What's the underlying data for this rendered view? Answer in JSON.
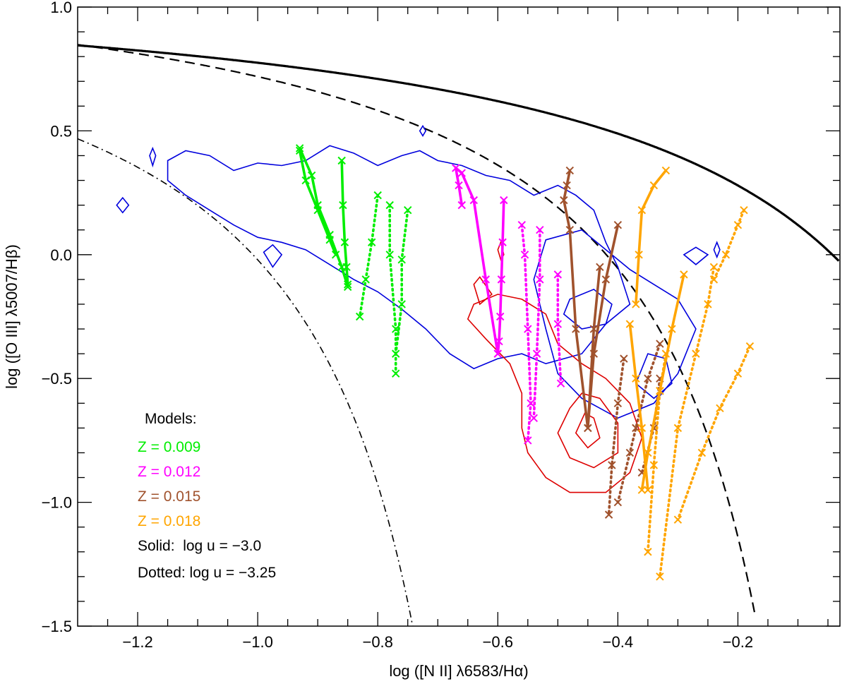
{
  "chart_data": {
    "type": "line",
    "xlabel": "log ([N II] λ6583/Hα)",
    "ylabel": "log ([O III] λ5007/Hβ)",
    "xlim": [
      -1.3,
      -0.03
    ],
    "ylim": [
      -1.5,
      1.0
    ],
    "xticks": [
      -1.2,
      -1.0,
      -0.8,
      -0.6,
      -0.4,
      -0.2
    ],
    "xtick_labels": [
      "−1.2",
      "−1.0",
      "−0.8",
      "−0.6",
      "−0.4",
      "−0.2"
    ],
    "yticks": [
      -1.5,
      -1.0,
      -0.5,
      0.0,
      0.5,
      1.0
    ],
    "ytick_labels": [
      "−1.5",
      "−1.0",
      "−0.5",
      "0.0",
      "0.5",
      "1.0"
    ],
    "grid": false,
    "demarcation_curves": [
      {
        "name": "solid-curve",
        "style": "solid",
        "formula": "0.61/(x-0.47)+1.19"
      },
      {
        "name": "dashed-curve",
        "style": "dashed",
        "formula": "0.61/(x-0.05)+1.3"
      },
      {
        "name": "dashdot-curve",
        "style": "dashdot",
        "formula": "-30.787+1.1358x+0.27297x^2 tanh(5.7409x)"
      }
    ],
    "contours": [
      {
        "name": "contour-blue-main",
        "color": "#0000dd",
        "points": [
          [
            -1.15,
            0.38
          ],
          [
            -1.12,
            0.42
          ],
          [
            -1.08,
            0.4
          ],
          [
            -1.04,
            0.34
          ],
          [
            -1.0,
            0.37
          ],
          [
            -0.96,
            0.36
          ],
          [
            -0.92,
            0.38
          ],
          [
            -0.88,
            0.44
          ],
          [
            -0.84,
            0.41
          ],
          [
            -0.8,
            0.36
          ],
          [
            -0.76,
            0.4
          ],
          [
            -0.73,
            0.42
          ],
          [
            -0.7,
            0.38
          ],
          [
            -0.66,
            0.36
          ],
          [
            -0.62,
            0.32
          ],
          [
            -0.58,
            0.3
          ],
          [
            -0.54,
            0.24
          ],
          [
            -0.5,
            0.28
          ],
          [
            -0.47,
            0.24
          ],
          [
            -0.44,
            0.18
          ],
          [
            -0.42,
            0.05
          ],
          [
            -0.4,
            -0.05
          ],
          [
            -0.38,
            -0.2
          ],
          [
            -0.42,
            -0.28
          ],
          [
            -0.46,
            -0.4
          ],
          [
            -0.52,
            -0.44
          ],
          [
            -0.56,
            -0.4
          ],
          [
            -0.6,
            -0.42
          ],
          [
            -0.64,
            -0.46
          ],
          [
            -0.68,
            -0.4
          ],
          [
            -0.72,
            -0.3
          ],
          [
            -0.76,
            -0.22
          ],
          [
            -0.8,
            -0.15
          ],
          [
            -0.84,
            -0.1
          ],
          [
            -0.88,
            -0.04
          ],
          [
            -0.92,
            0.02
          ],
          [
            -0.96,
            0.05
          ],
          [
            -1.0,
            0.07
          ],
          [
            -1.04,
            0.12
          ],
          [
            -1.08,
            0.18
          ],
          [
            -1.12,
            0.24
          ],
          [
            -1.15,
            0.3
          ],
          [
            -1.15,
            0.38
          ]
        ]
      },
      {
        "name": "contour-blue-right",
        "color": "#0000dd",
        "points": [
          [
            -0.52,
            0.06
          ],
          [
            -0.46,
            0.1
          ],
          [
            -0.42,
            0.02
          ],
          [
            -0.38,
            -0.06
          ],
          [
            -0.34,
            -0.12
          ],
          [
            -0.3,
            -0.18
          ],
          [
            -0.27,
            -0.3
          ],
          [
            -0.3,
            -0.48
          ],
          [
            -0.34,
            -0.6
          ],
          [
            -0.4,
            -0.66
          ],
          [
            -0.46,
            -0.58
          ],
          [
            -0.5,
            -0.48
          ],
          [
            -0.52,
            -0.3
          ],
          [
            -0.54,
            -0.1
          ],
          [
            -0.52,
            0.06
          ]
        ]
      },
      {
        "name": "contour-blue-inner-1",
        "color": "#0000dd",
        "points": [
          [
            -0.48,
            -0.18
          ],
          [
            -0.44,
            -0.14
          ],
          [
            -0.41,
            -0.2
          ],
          [
            -0.42,
            -0.28
          ],
          [
            -0.46,
            -0.3
          ],
          [
            -0.49,
            -0.24
          ],
          [
            -0.48,
            -0.18
          ]
        ]
      },
      {
        "name": "contour-blue-inner-2",
        "color": "#0000dd",
        "points": [
          [
            -0.35,
            -0.4
          ],
          [
            -0.32,
            -0.42
          ],
          [
            -0.31,
            -0.52
          ],
          [
            -0.34,
            -0.58
          ],
          [
            -0.37,
            -0.52
          ],
          [
            -0.35,
            -0.4
          ]
        ]
      },
      {
        "name": "contour-blue-small-1",
        "color": "#0000dd",
        "points": [
          [
            -1.235,
            0.2
          ],
          [
            -1.225,
            0.23
          ],
          [
            -1.215,
            0.2
          ],
          [
            -1.225,
            0.17
          ],
          [
            -1.235,
            0.2
          ]
        ]
      },
      {
        "name": "contour-blue-small-2",
        "color": "#0000dd",
        "points": [
          [
            -1.18,
            0.4
          ],
          [
            -1.175,
            0.43
          ],
          [
            -1.17,
            0.4
          ],
          [
            -1.175,
            0.36
          ],
          [
            -1.18,
            0.4
          ]
        ]
      },
      {
        "name": "contour-blue-small-3",
        "color": "#0000dd",
        "points": [
          [
            -0.99,
            0.01
          ],
          [
            -0.975,
            0.04
          ],
          [
            -0.96,
            0.0
          ],
          [
            -0.975,
            -0.05
          ],
          [
            -0.99,
            0.01
          ]
        ]
      },
      {
        "name": "contour-blue-small-4",
        "color": "#0000dd",
        "points": [
          [
            -0.73,
            0.5
          ],
          [
            -0.725,
            0.52
          ],
          [
            -0.72,
            0.5
          ],
          [
            -0.725,
            0.48
          ],
          [
            -0.73,
            0.5
          ]
        ]
      },
      {
        "name": "contour-blue-small-5",
        "color": "#0000dd",
        "points": [
          [
            -0.24,
            0.02
          ],
          [
            -0.235,
            0.05
          ],
          [
            -0.23,
            0.02
          ],
          [
            -0.235,
            -0.01
          ],
          [
            -0.24,
            0.02
          ]
        ]
      },
      {
        "name": "contour-blue-small-6",
        "color": "#0000dd",
        "points": [
          [
            -0.29,
            0.0
          ],
          [
            -0.27,
            0.03
          ],
          [
            -0.25,
            0.0
          ],
          [
            -0.27,
            -0.04
          ],
          [
            -0.29,
            0.0
          ]
        ]
      },
      {
        "name": "contour-red-outer",
        "color": "#dd0000",
        "points": [
          [
            -0.64,
            -0.2
          ],
          [
            -0.6,
            -0.16
          ],
          [
            -0.56,
            -0.18
          ],
          [
            -0.52,
            -0.24
          ],
          [
            -0.5,
            -0.36
          ],
          [
            -0.46,
            -0.44
          ],
          [
            -0.42,
            -0.5
          ],
          [
            -0.38,
            -0.6
          ],
          [
            -0.36,
            -0.74
          ],
          [
            -0.38,
            -0.88
          ],
          [
            -0.42,
            -0.96
          ],
          [
            -0.48,
            -0.96
          ],
          [
            -0.52,
            -0.9
          ],
          [
            -0.55,
            -0.8
          ],
          [
            -0.56,
            -0.7
          ],
          [
            -0.56,
            -0.56
          ],
          [
            -0.58,
            -0.44
          ],
          [
            -0.62,
            -0.34
          ],
          [
            -0.65,
            -0.26
          ],
          [
            -0.64,
            -0.2
          ]
        ]
      },
      {
        "name": "contour-red-mid",
        "color": "#dd0000",
        "points": [
          [
            -0.46,
            -0.56
          ],
          [
            -0.43,
            -0.58
          ],
          [
            -0.4,
            -0.68
          ],
          [
            -0.4,
            -0.8
          ],
          [
            -0.44,
            -0.86
          ],
          [
            -0.48,
            -0.82
          ],
          [
            -0.5,
            -0.72
          ],
          [
            -0.48,
            -0.62
          ],
          [
            -0.46,
            -0.56
          ]
        ]
      },
      {
        "name": "contour-red-inner",
        "color": "#dd0000",
        "points": [
          [
            -0.455,
            -0.64
          ],
          [
            -0.44,
            -0.66
          ],
          [
            -0.43,
            -0.74
          ],
          [
            -0.45,
            -0.78
          ],
          [
            -0.47,
            -0.72
          ],
          [
            -0.455,
            -0.64
          ]
        ]
      },
      {
        "name": "contour-red-small-1",
        "color": "#dd0000",
        "points": [
          [
            -0.64,
            -0.12
          ],
          [
            -0.63,
            -0.09
          ],
          [
            -0.61,
            -0.16
          ],
          [
            -0.63,
            -0.2
          ],
          [
            -0.64,
            -0.12
          ]
        ]
      },
      {
        "name": "contour-red-small-2",
        "color": "#dd0000",
        "points": [
          [
            -0.6,
            0.02
          ],
          [
            -0.595,
            0.05
          ],
          [
            -0.59,
            0.0
          ],
          [
            -0.595,
            -0.02
          ],
          [
            -0.6,
            0.02
          ]
        ]
      }
    ],
    "series": [
      {
        "name": "Z = 0.009 solid",
        "color": "#00ee00",
        "style": "solid",
        "x": [
          -0.93,
          -0.91,
          -0.9,
          -0.88,
          -0.86,
          -0.85
        ],
        "y": [
          0.43,
          0.32,
          0.2,
          0.08,
          -0.05,
          -0.13
        ]
      },
      {
        "name": "Z = 0.009 solid 2",
        "color": "#00ee00",
        "style": "solid",
        "x": [
          -0.93,
          -0.92,
          -0.9,
          -0.88,
          -0.87
        ],
        "y": [
          0.42,
          0.3,
          0.18,
          0.06,
          0.0
        ]
      },
      {
        "name": "Z = 0.009 solid 3",
        "color": "#00ee00",
        "style": "solid",
        "x": [
          -0.86,
          -0.858,
          -0.855,
          -0.852,
          -0.85
        ],
        "y": [
          0.38,
          0.2,
          0.05,
          -0.05,
          -0.12
        ]
      },
      {
        "name": "Z = 0.009 dotted 1",
        "color": "#00ee00",
        "style": "dotted",
        "x": [
          -0.8,
          -0.81,
          -0.82,
          -0.83
        ],
        "y": [
          0.24,
          0.05,
          -0.1,
          -0.25
        ]
      },
      {
        "name": "Z = 0.009 dotted 2",
        "color": "#00ee00",
        "style": "dotted",
        "x": [
          -0.78,
          -0.78,
          -0.77,
          -0.77
        ],
        "y": [
          0.2,
          0.0,
          -0.3,
          -0.48
        ]
      },
      {
        "name": "Z = 0.009 dotted 3",
        "color": "#00ee00",
        "style": "dotted",
        "x": [
          -0.75,
          -0.76,
          -0.76,
          -0.77
        ],
        "y": [
          0.18,
          -0.02,
          -0.2,
          -0.4
        ]
      },
      {
        "name": "Z = 0.012 solid",
        "color": "#ff00ff",
        "style": "solid",
        "x": [
          -0.66,
          -0.665,
          -0.67,
          -0.66,
          -0.64,
          -0.62,
          -0.6
        ],
        "y": [
          0.2,
          0.28,
          0.35,
          0.33,
          0.22,
          -0.1,
          -0.4
        ]
      },
      {
        "name": "Z = 0.012 solid 2",
        "color": "#ff00ff",
        "style": "solid",
        "x": [
          -0.59,
          -0.592,
          -0.594,
          -0.596,
          -0.598,
          -0.6
        ],
        "y": [
          0.22,
          0.05,
          -0.1,
          -0.25,
          -0.35,
          -0.4
        ]
      },
      {
        "name": "Z = 0.012 dotted 1",
        "color": "#ff00ff",
        "style": "dotted",
        "x": [
          -0.56,
          -0.555,
          -0.55,
          -0.545,
          -0.55
        ],
        "y": [
          0.12,
          0.0,
          -0.3,
          -0.6,
          -0.75
        ]
      },
      {
        "name": "Z = 0.012 dotted 2",
        "color": "#ff00ff",
        "style": "dotted",
        "x": [
          -0.53,
          -0.53,
          -0.535,
          -0.54
        ],
        "y": [
          0.1,
          -0.1,
          -0.4,
          -0.66
        ]
      },
      {
        "name": "Z = 0.012 dotted 3",
        "color": "#ff00ff",
        "style": "dotted",
        "x": [
          -0.5,
          -0.5,
          -0.495
        ],
        "y": [
          -0.08,
          -0.28,
          -0.52
        ]
      },
      {
        "name": "Z = 0.015 solid",
        "color": "#a0522d",
        "style": "solid",
        "x": [
          -0.48,
          -0.485,
          -0.49,
          -0.48,
          -0.47,
          -0.45,
          -0.44,
          -0.43
        ],
        "y": [
          0.34,
          0.28,
          0.22,
          0.1,
          -0.3,
          -0.7,
          -0.3,
          -0.05
        ]
      },
      {
        "name": "Z = 0.015 solid 2",
        "color": "#a0522d",
        "style": "solid",
        "x": [
          -0.4,
          -0.42,
          -0.44,
          -0.45
        ],
        "y": [
          0.12,
          -0.1,
          -0.4,
          -0.7
        ]
      },
      {
        "name": "Z = 0.015 dotted 1",
        "color": "#a0522d",
        "style": "dotted",
        "x": [
          -0.39,
          -0.4,
          -0.41,
          -0.415
        ],
        "y": [
          -0.42,
          -0.6,
          -0.85,
          -1.05
        ]
      },
      {
        "name": "Z = 0.015 dotted 2",
        "color": "#a0522d",
        "style": "dotted",
        "x": [
          -0.33,
          -0.35,
          -0.37,
          -0.38,
          -0.4
        ],
        "y": [
          -0.36,
          -0.5,
          -0.7,
          -0.8,
          -1.0
        ]
      },
      {
        "name": "Z = 0.015 dotted 3",
        "color": "#a0522d",
        "style": "dotted",
        "x": [
          -0.33,
          -0.34,
          -0.36
        ],
        "y": [
          -0.5,
          -0.7,
          -0.88
        ]
      },
      {
        "name": "Z = 0.018 solid",
        "color": "#ffa500",
        "style": "solid",
        "x": [
          -0.32,
          -0.34,
          -0.36,
          -0.365,
          -0.37
        ],
        "y": [
          0.34,
          0.28,
          0.18,
          0.0,
          -0.2
        ]
      },
      {
        "name": "Z = 0.018 solid 2",
        "color": "#ffa500",
        "style": "solid",
        "x": [
          -0.29,
          -0.31,
          -0.33,
          -0.35,
          -0.36
        ],
        "y": [
          -0.08,
          -0.3,
          -0.55,
          -0.8,
          -0.95
        ]
      },
      {
        "name": "Z = 0.018 solid 3",
        "color": "#ffa500",
        "style": "solid",
        "x": [
          -0.38,
          -0.37,
          -0.36,
          -0.35
        ],
        "y": [
          -0.28,
          -0.5,
          -0.7,
          -0.95
        ]
      },
      {
        "name": "Z = 0.018 dotted 1",
        "color": "#ffa500",
        "style": "dotted",
        "x": [
          -0.19,
          -0.2,
          -0.22,
          -0.24
        ],
        "y": [
          0.18,
          0.12,
          0.0,
          -0.1
        ]
      },
      {
        "name": "Z = 0.018 dotted 2",
        "color": "#ffa500",
        "style": "dotted",
        "x": [
          -0.24,
          -0.25,
          -0.27,
          -0.3,
          -0.33
        ],
        "y": [
          -0.05,
          -0.2,
          -0.4,
          -0.7,
          -1.3
        ]
      },
      {
        "name": "Z = 0.018 dotted 3",
        "color": "#ffa500",
        "style": "dotted",
        "x": [
          -0.18,
          -0.2,
          -0.23,
          -0.26,
          -0.3
        ],
        "y": [
          -0.37,
          -0.48,
          -0.62,
          -0.8,
          -1.07
        ]
      },
      {
        "name": "Z = 0.018 dotted 4",
        "color": "#ffa500",
        "style": "dotted",
        "x": [
          -0.32,
          -0.33,
          -0.34,
          -0.35
        ],
        "y": [
          -0.4,
          -0.55,
          -0.85,
          -1.2
        ]
      }
    ],
    "legend": {
      "title": "Models:",
      "entries": [
        {
          "label": "Z = 0.009",
          "color": "#00ee00"
        },
        {
          "label": "Z = 0.012",
          "color": "#ff00ff"
        },
        {
          "label": "Z = 0.015",
          "color": "#a0522d"
        },
        {
          "label": "Z = 0.018",
          "color": "#ffa500"
        }
      ],
      "notes": [
        "Solid:  log u = −3.0",
        "Dotted: log u = −3.25"
      ]
    }
  }
}
